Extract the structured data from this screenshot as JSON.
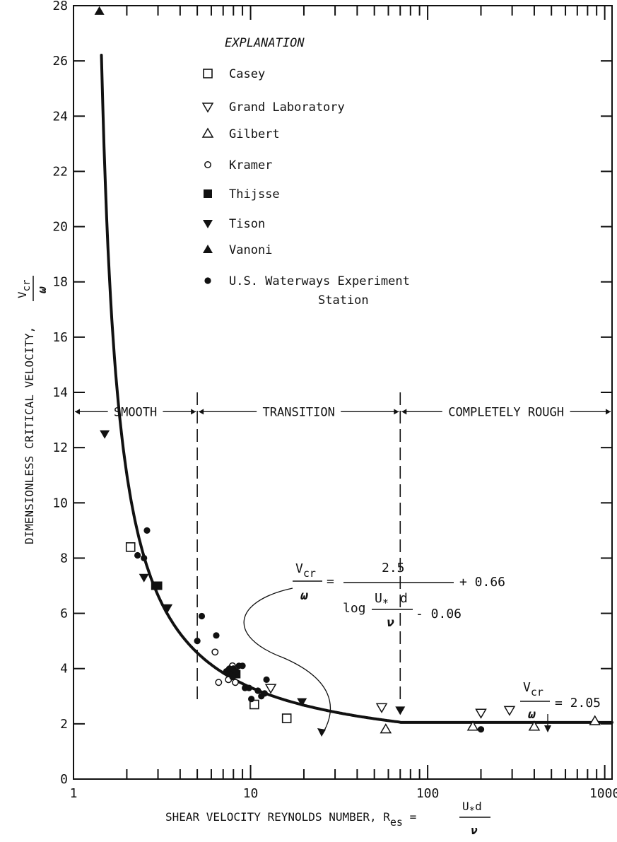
{
  "chart_data": {
    "type": "scatter",
    "xscale": "log",
    "xlim": [
      1,
      1100
    ],
    "ylim": [
      0,
      28
    ],
    "grid": false,
    "xticks": [
      1,
      10,
      100,
      1000
    ],
    "xtick_labels": [
      "1",
      "10",
      "100",
      "1000"
    ],
    "yticks": [
      0,
      2,
      4,
      6,
      8,
      10,
      12,
      14,
      16,
      18,
      20,
      22,
      24,
      26,
      28
    ],
    "xlabel": "SHEAR VELOCITY REYNOLDS NUMBER, R",
    "xlabel_sub": "es",
    "xlabel_frac_num": "U",
    "xlabel_frac_num_sub": "*",
    "xlabel_frac_num_tail": "d",
    "xlabel_frac_den": "ν",
    "ylabel": "DIMENSIONLESS CRITICAL VELOCITY,",
    "ylabel_frac_num": "V",
    "ylabel_frac_num_sub": "cr",
    "ylabel_frac_den": "ω",
    "legend_title": "EXPLANATION",
    "legend_position": "top-left",
    "regions": [
      {
        "label": "SMOOTH",
        "x_range": [
          1,
          5
        ]
      },
      {
        "label": "TRANSITION",
        "x_range": [
          5,
          70
        ]
      },
      {
        "label": "COMPLETELY ROUGH",
        "x_range": [
          70,
          1100
        ]
      }
    ],
    "region_boundaries": [
      5,
      70
    ],
    "region_label_y": 13.3,
    "equation_main": {
      "lhs_num": "V",
      "lhs_num_sub": "cr",
      "lhs_den": "ω",
      "equals": "=",
      "num": "2.5",
      "plus": "+ 0.66",
      "den_log": "log",
      "den_frac_num": "U",
      "den_frac_num_sub": "*",
      "den_frac_num_tail": "d",
      "den_frac_den": "ν",
      "den_tail": "- 0.06"
    },
    "equation_rough": {
      "lhs_num": "V",
      "lhs_num_sub": "cr",
      "lhs_den": "ω",
      "rhs": "= 2.05"
    },
    "curve": {
      "formula": "2.5 / (log10(x) - 0.06) + 0.66 (x < 70); 2.05 (x >= 70)",
      "x_range": [
        1.3,
        1100
      ]
    },
    "series": [
      {
        "name": "Casey",
        "marker": "square-open",
        "x": [
          2.1,
          10.5,
          16
        ],
        "y": [
          8.4,
          2.7,
          2.2
        ]
      },
      {
        "name": "Grand Laboratory",
        "marker": "triangle-down-open",
        "x": [
          13,
          55,
          200,
          290
        ],
        "y": [
          3.3,
          2.6,
          2.4,
          2.5
        ]
      },
      {
        "name": "Gilbert",
        "marker": "triangle-up-open",
        "x": [
          58,
          180,
          400,
          880
        ],
        "y": [
          1.8,
          1.9,
          1.9,
          2.1
        ]
      },
      {
        "name": "Kramer",
        "marker": "circle-open-small",
        "x": [
          6.3,
          6.6,
          7.5,
          7.9,
          8.2
        ],
        "y": [
          4.6,
          3.5,
          3.6,
          4.1,
          3.5
        ]
      },
      {
        "name": "Thijsse",
        "marker": "square-filled",
        "x": [
          2.9,
          3.0,
          7.7,
          8.3
        ],
        "y": [
          7.0,
          7.0,
          3.9,
          3.8
        ]
      },
      {
        "name": "Tison",
        "marker": "triangle-down-filled",
        "x": [
          1.5,
          2.5,
          3.4,
          19.5,
          70
        ],
        "y": [
          12.5,
          7.3,
          6.2,
          2.8,
          2.5
        ]
      },
      {
        "name": "Vanoni",
        "marker": "triangle-up-filled",
        "x": [
          1.4
        ],
        "y": [
          27.8
        ]
      },
      {
        "name": "U.S. Waterways Experiment",
        "name_line2": "Station",
        "marker": "circle-filled",
        "x": [
          2.3,
          2.5,
          2.6,
          5.0,
          5.3,
          6.4,
          7.3,
          7.6,
          7.9,
          8.0,
          8.3,
          8.6,
          9.0,
          9.3,
          9.8,
          10.1,
          11.0,
          11.5,
          12.0,
          12.3,
          200
        ],
        "y": [
          8.1,
          8.0,
          9.0,
          5.0,
          5.9,
          5.2,
          3.9,
          4.0,
          3.7,
          4.0,
          3.9,
          4.1,
          4.1,
          3.3,
          3.3,
          2.9,
          3.2,
          3.0,
          3.1,
          3.6,
          1.8
        ]
      }
    ]
  }
}
